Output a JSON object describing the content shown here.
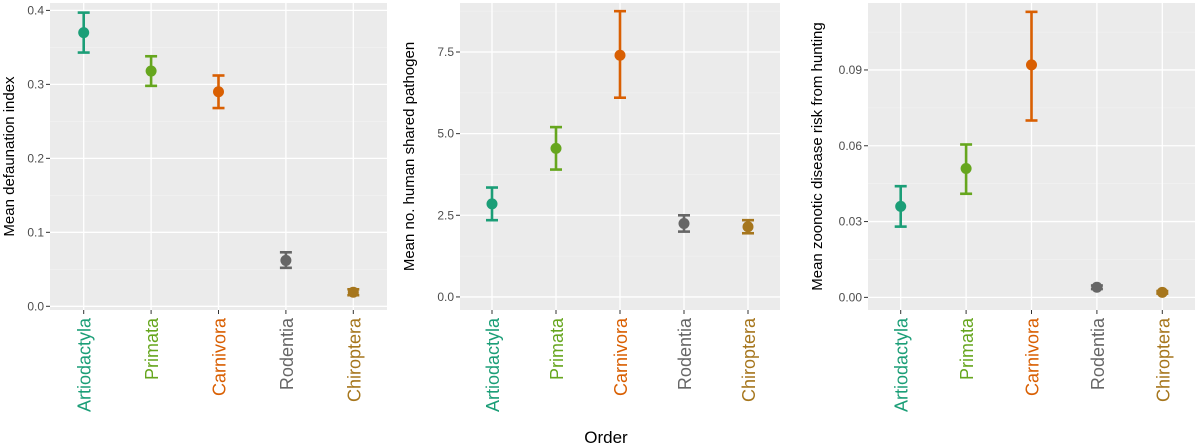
{
  "figure": {
    "shared_xlabel": "Order"
  },
  "chart_data": [
    {
      "type": "scatter",
      "subtype": "point-with-errorbars",
      "ylabel": "Mean defaunation index",
      "ylim": [
        -0.005,
        0.41
      ],
      "yticks": [
        0.0,
        0.1,
        0.2,
        0.3,
        0.4
      ],
      "ytick_labels": [
        "0.0",
        "0.1",
        "0.2",
        "0.3",
        "0.4"
      ],
      "categories": [
        "Artiodactyla",
        "Primata",
        "Carnivora",
        "Rodentia",
        "Chiroptera"
      ],
      "values": [
        0.37,
        0.318,
        0.29,
        0.062,
        0.019
      ],
      "lower": [
        0.343,
        0.298,
        0.268,
        0.052,
        0.015
      ],
      "upper": [
        0.397,
        0.338,
        0.312,
        0.073,
        0.023
      ],
      "grid": true
    },
    {
      "type": "scatter",
      "subtype": "point-with-errorbars",
      "ylabel": "Mean no. human shared pathogen",
      "ylim": [
        -0.4,
        9.0
      ],
      "yticks": [
        0.0,
        2.5,
        5.0,
        7.5
      ],
      "ytick_labels": [
        "0.0",
        "2.5",
        "5.0",
        "7.5"
      ],
      "categories": [
        "Artiodactyla",
        "Primata",
        "Carnivora",
        "Rodentia",
        "Chiroptera"
      ],
      "values": [
        2.85,
        4.55,
        7.4,
        2.25,
        2.15
      ],
      "lower": [
        2.35,
        3.9,
        6.1,
        2.0,
        1.95
      ],
      "upper": [
        3.35,
        5.2,
        8.75,
        2.5,
        2.35
      ],
      "grid": true
    },
    {
      "type": "scatter",
      "subtype": "point-with-errorbars",
      "ylabel": "Mean zoonotic disease risk from hunting",
      "ylim": [
        -0.005,
        0.1165
      ],
      "yticks": [
        0.0,
        0.03,
        0.06,
        0.09
      ],
      "ytick_labels": [
        "0.00",
        "0.03",
        "0.06",
        "0.09"
      ],
      "categories": [
        "Artiodactyla",
        "Primata",
        "Carnivora",
        "Rodentia",
        "Chiroptera"
      ],
      "values": [
        0.036,
        0.051,
        0.092,
        0.004,
        0.002
      ],
      "lower": [
        0.028,
        0.041,
        0.07,
        0.0033,
        0.0015
      ],
      "upper": [
        0.044,
        0.0605,
        0.113,
        0.0047,
        0.0025
      ],
      "grid": true
    }
  ],
  "colors": {
    "Artiodactyla": "#1b9e77",
    "Primata": "#66a61e",
    "Carnivora": "#d95f02",
    "Rodentia": "#666666",
    "Chiroptera": "#a6761d",
    "panel_background": "#ebebeb",
    "grid_major": "#ffffff",
    "grid_minor": "#f2f2f2"
  }
}
